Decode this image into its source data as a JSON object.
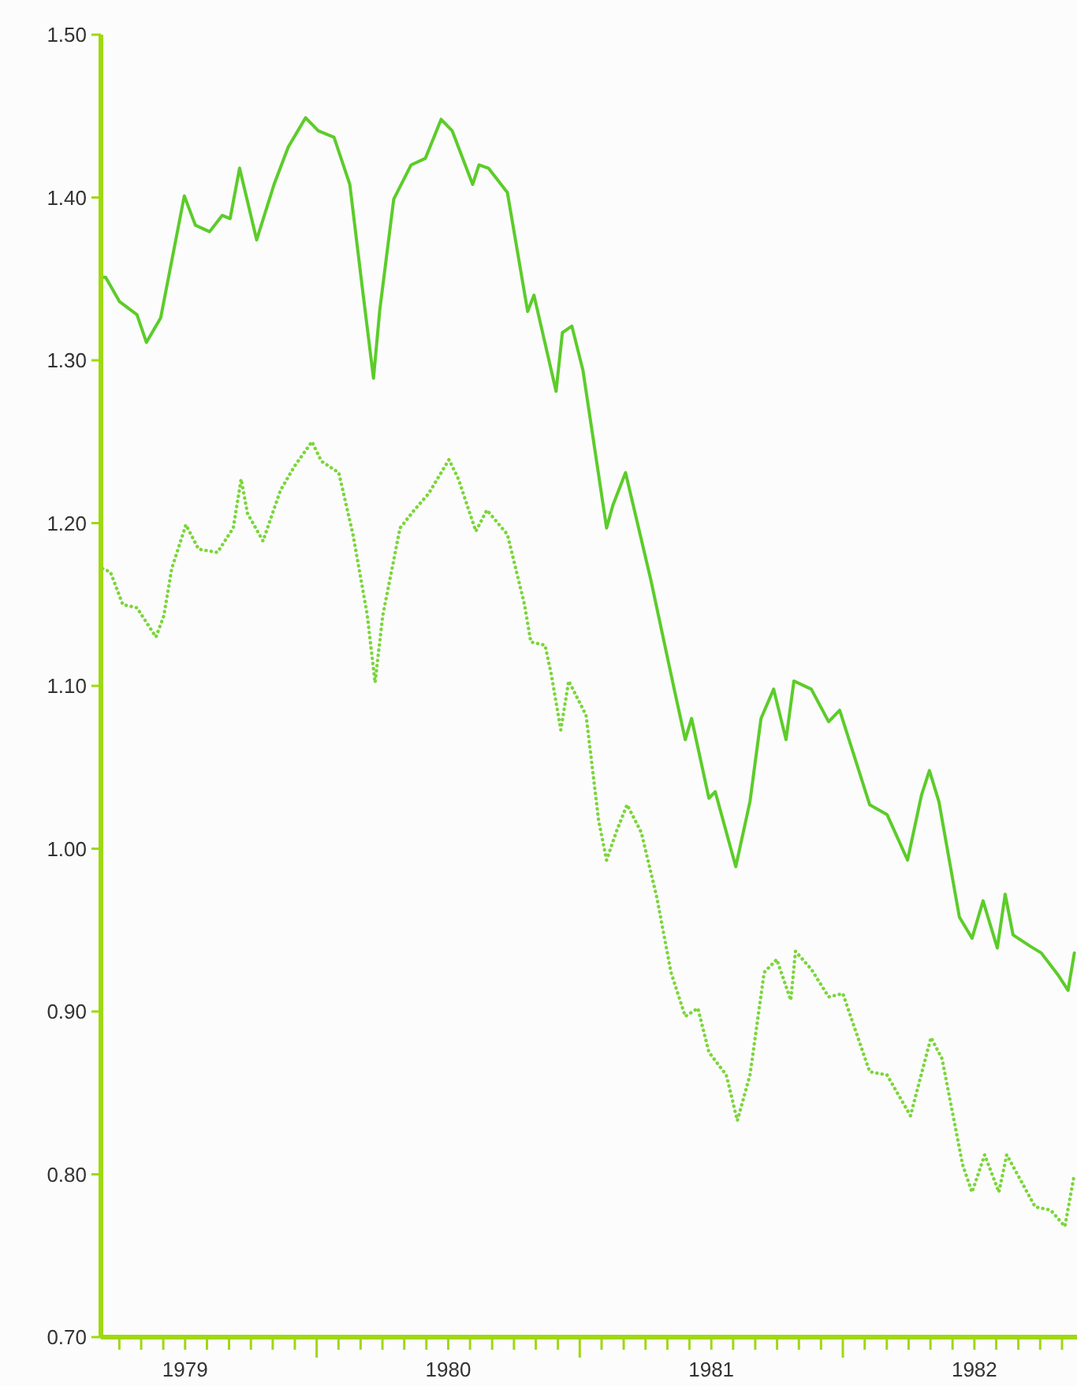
{
  "chart_data": {
    "type": "line",
    "xlim": [
      1979.18,
      1982.89
    ],
    "ylim": [
      0.7,
      1.5
    ],
    "yticks": [
      {
        "value": 0.7,
        "label": "0.70"
      },
      {
        "value": 0.8,
        "label": "0.80"
      },
      {
        "value": 0.9,
        "label": "0.90"
      },
      {
        "value": 1.0,
        "label": "1.00"
      },
      {
        "value": 1.1,
        "label": "1.10"
      },
      {
        "value": 1.2,
        "label": "1.20"
      },
      {
        "value": 1.3,
        "label": "1.30"
      },
      {
        "value": 1.4,
        "label": "1.40"
      },
      {
        "value": 1.5,
        "label": "1.50"
      }
    ],
    "xticks": [
      {
        "value": 1979.25,
        "label": null
      },
      {
        "value": 1979.333,
        "label": null
      },
      {
        "value": 1979.417,
        "label": null
      },
      {
        "value": 1979.5,
        "label": "1979"
      },
      {
        "value": 1979.583,
        "label": null
      },
      {
        "value": 1979.667,
        "label": null
      },
      {
        "value": 1979.75,
        "label": null
      },
      {
        "value": 1979.833,
        "label": null
      },
      {
        "value": 1979.917,
        "label": null
      },
      {
        "value": 1980,
        "label": null
      },
      {
        "value": 1980.083,
        "label": null
      },
      {
        "value": 1980.167,
        "label": null
      },
      {
        "value": 1980.25,
        "label": null
      },
      {
        "value": 1980.333,
        "label": null
      },
      {
        "value": 1980.417,
        "label": null
      },
      {
        "value": 1980.5,
        "label": "1980"
      },
      {
        "value": 1980.583,
        "label": null
      },
      {
        "value": 1980.667,
        "label": null
      },
      {
        "value": 1980.75,
        "label": null
      },
      {
        "value": 1980.833,
        "label": null
      },
      {
        "value": 1980.917,
        "label": null
      },
      {
        "value": 1981,
        "label": null
      },
      {
        "value": 1981.083,
        "label": null
      },
      {
        "value": 1981.167,
        "label": null
      },
      {
        "value": 1981.25,
        "label": null
      },
      {
        "value": 1981.333,
        "label": null
      },
      {
        "value": 1981.417,
        "label": null
      },
      {
        "value": 1981.5,
        "label": "1981"
      },
      {
        "value": 1981.583,
        "label": null
      },
      {
        "value": 1981.667,
        "label": null
      },
      {
        "value": 1981.75,
        "label": null
      },
      {
        "value": 1981.833,
        "label": null
      },
      {
        "value": 1981.917,
        "label": null
      },
      {
        "value": 1982,
        "label": null
      },
      {
        "value": 1982.083,
        "label": null
      },
      {
        "value": 1982.167,
        "label": null
      },
      {
        "value": 1982.25,
        "label": null
      },
      {
        "value": 1982.333,
        "label": null
      },
      {
        "value": 1982.417,
        "label": null
      },
      {
        "value": 1982.5,
        "label": "1982"
      },
      {
        "value": 1982.583,
        "label": null
      },
      {
        "value": 1982.667,
        "label": null
      },
      {
        "value": 1982.75,
        "label": null
      },
      {
        "value": 1982.833,
        "label": null
      }
    ],
    "series": [
      {
        "color": "#5ccc2a",
        "line_style": "solid",
        "x": [
          1979.186,
          1979.198,
          1979.251,
          1979.317,
          1979.353,
          1979.407,
          1979.449,
          1979.497,
          1979.539,
          1979.593,
          1979.641,
          1979.671,
          1979.707,
          1979.772,
          1979.838,
          1979.892,
          1979.958,
          1980.006,
          1980.066,
          1980.126,
          1980.174,
          1980.216,
          1980.24,
          1980.293,
          1980.359,
          1980.413,
          1980.473,
          1980.515,
          1980.593,
          1980.617,
          1980.653,
          1980.725,
          1980.802,
          1980.826,
          1980.91,
          1980.934,
          1980.97,
          1981.012,
          1981.102,
          1981.126,
          1981.174,
          1981.269,
          1981.359,
          1981.401,
          1981.425,
          1981.491,
          1981.515,
          1981.593,
          1981.647,
          1981.689,
          1981.737,
          1981.784,
          1981.814,
          1981.88,
          1981.946,
          1981.988,
          1982.102,
          1982.168,
          1982.246,
          1982.299,
          1982.329,
          1982.365,
          1982.443,
          1982.491,
          1982.533,
          1982.587,
          1982.617,
          1982.647,
          1982.713,
          1982.754,
          1982.82,
          1982.856,
          1982.88
        ],
        "values": [
          1.351,
          1.351,
          1.336,
          1.328,
          1.311,
          1.326,
          1.361,
          1.401,
          1.383,
          1.379,
          1.389,
          1.387,
          1.418,
          1.374,
          1.408,
          1.431,
          1.449,
          1.441,
          1.437,
          1.408,
          1.344,
          1.289,
          1.331,
          1.399,
          1.42,
          1.424,
          1.448,
          1.441,
          1.408,
          1.42,
          1.418,
          1.403,
          1.33,
          1.34,
          1.281,
          1.317,
          1.321,
          1.294,
          1.197,
          1.211,
          1.231,
          1.166,
          1.098,
          1.067,
          1.08,
          1.031,
          1.035,
          0.989,
          1.029,
          1.08,
          1.098,
          1.067,
          1.103,
          1.098,
          1.078,
          1.085,
          1.027,
          1.021,
          0.993,
          1.033,
          1.048,
          1.029,
          0.958,
          0.945,
          0.968,
          0.939,
          0.972,
          0.947,
          0.94,
          0.936,
          0.922,
          0.913,
          0.936
        ]
      },
      {
        "color": "#7ad63a",
        "line_style": "dotted",
        "x": [
          1979.186,
          1979.216,
          1979.263,
          1979.317,
          1979.389,
          1979.419,
          1979.449,
          1979.503,
          1979.551,
          1979.623,
          1979.683,
          1979.713,
          1979.737,
          1979.796,
          1979.862,
          1979.916,
          1979.982,
          1980.018,
          1980.084,
          1980.138,
          1980.192,
          1980.222,
          1980.251,
          1980.317,
          1980.371,
          1980.425,
          1980.503,
          1980.539,
          1980.605,
          1980.647,
          1980.725,
          1980.79,
          1980.814,
          1980.868,
          1980.892,
          1980.928,
          1980.958,
          1981.024,
          1981.072,
          1981.102,
          1981.138,
          1981.18,
          1981.234,
          1981.293,
          1981.347,
          1981.401,
          1981.449,
          1981.491,
          1981.557,
          1981.599,
          1981.647,
          1981.701,
          1981.749,
          1981.802,
          1981.82,
          1981.88,
          1981.946,
          1982,
          1982.102,
          1982.168,
          1982.257,
          1982.335,
          1982.377,
          1982.455,
          1982.491,
          1982.539,
          1982.593,
          1982.623,
          1982.731,
          1982.79,
          1982.844,
          1982.88
        ],
        "values": [
          1.172,
          1.17,
          1.15,
          1.148,
          1.13,
          1.143,
          1.172,
          1.199,
          1.184,
          1.182,
          1.197,
          1.227,
          1.206,
          1.189,
          1.22,
          1.235,
          1.25,
          1.238,
          1.231,
          1.193,
          1.144,
          1.102,
          1.143,
          1.197,
          1.208,
          1.218,
          1.239,
          1.227,
          1.195,
          1.208,
          1.193,
          1.15,
          1.127,
          1.125,
          1.107,
          1.073,
          1.103,
          1.082,
          1.017,
          0.993,
          1.01,
          1.027,
          1.01,
          0.97,
          0.924,
          0.897,
          0.902,
          0.875,
          0.861,
          0.833,
          0.861,
          0.924,
          0.932,
          0.907,
          0.937,
          0.926,
          0.909,
          0.911,
          0.863,
          0.861,
          0.836,
          0.884,
          0.871,
          0.806,
          0.789,
          0.812,
          0.789,
          0.812,
          0.78,
          0.778,
          0.768,
          0.8
        ]
      }
    ]
  }
}
